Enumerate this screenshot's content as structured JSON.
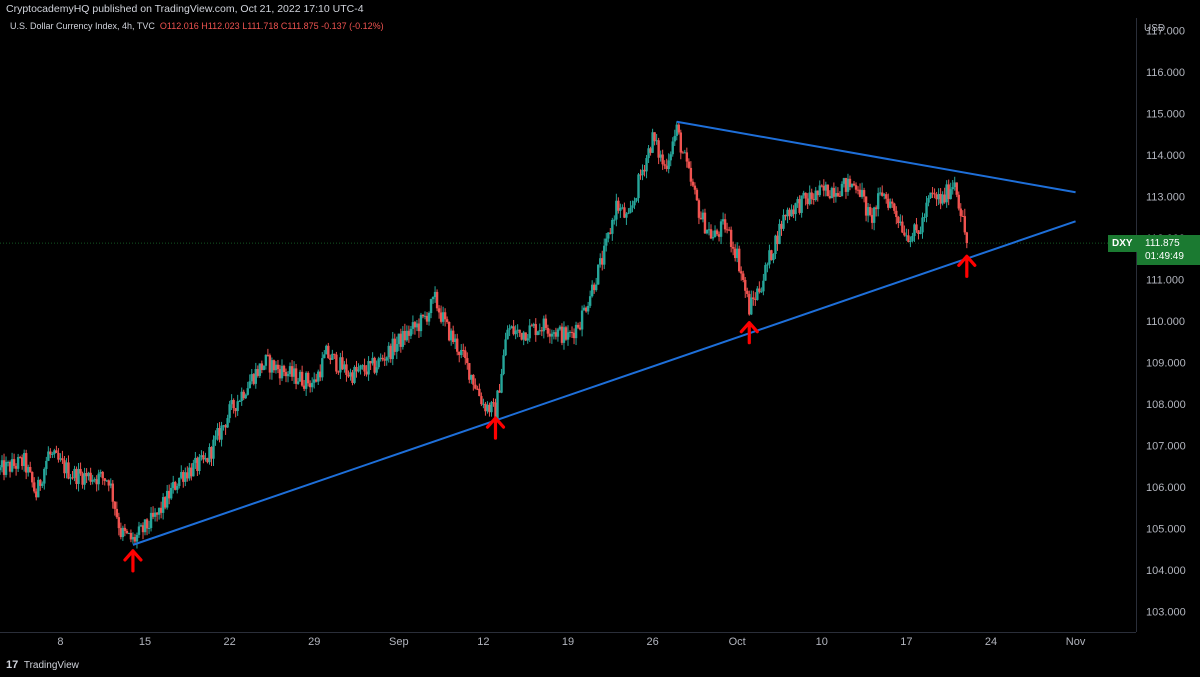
{
  "header": {
    "published_text": "CryptocademyHQ published on TradingView.com, Oct 21, 2022 17:10 UTC-4"
  },
  "legend": {
    "symbol_text": "U.S. Dollar Currency Index, 4h, TVC",
    "open": "O112.016",
    "high": "H112.023",
    "low": "L111.718",
    "close": "C111.875",
    "change": "-0.137 (-0.12%)"
  },
  "price_scale": {
    "currency": "USD",
    "labels": [
      "117.000",
      "116.000",
      "115.000",
      "114.000",
      "113.000",
      "112.000",
      "111.000",
      "110.000",
      "109.000",
      "108.000",
      "107.000",
      "106.000",
      "105.000",
      "104.000",
      "103.000"
    ]
  },
  "last_price": {
    "ticker": "DXY",
    "price": "111.875",
    "countdown": "01:49:49"
  },
  "time_scale": {
    "labels": [
      "8",
      "15",
      "22",
      "29",
      "Sep",
      "12",
      "19",
      "26",
      "Oct",
      "10",
      "17",
      "24",
      "Nov"
    ]
  },
  "footer": {
    "logo_text": "17",
    "brand": "TradingView"
  },
  "colors": {
    "up": "#26a69a",
    "down": "#ef5350",
    "trendline": "#2962ff",
    "arrow": "#ff0000",
    "last_price_bg": "#1b7a31",
    "background": "#000000"
  },
  "chart_data": {
    "type": "candlestick",
    "title": "U.S. Dollar Currency Index, 4h, TVC",
    "ylabel": "USD",
    "ylim": [
      102.5,
      117.3
    ],
    "xrange": [
      "2022-08-03",
      "2022-11-05"
    ],
    "x_ticks": [
      {
        "date": "2022-08-08",
        "label": "8"
      },
      {
        "date": "2022-08-15",
        "label": "15"
      },
      {
        "date": "2022-08-22",
        "label": "22"
      },
      {
        "date": "2022-08-29",
        "label": "29"
      },
      {
        "date": "2022-09-05",
        "label": "Sep"
      },
      {
        "date": "2022-09-12",
        "label": "12"
      },
      {
        "date": "2022-09-19",
        "label": "19"
      },
      {
        "date": "2022-09-26",
        "label": "26"
      },
      {
        "date": "2022-10-03",
        "label": "Oct"
      },
      {
        "date": "2022-10-10",
        "label": "10"
      },
      {
        "date": "2022-10-17",
        "label": "17"
      },
      {
        "date": "2022-10-24",
        "label": "24"
      },
      {
        "date": "2022-10-31",
        "label": "Nov"
      }
    ],
    "closes": [
      {
        "date": "2022-08-03",
        "close": 106.4
      },
      {
        "date": "2022-08-05",
        "close": 106.6
      },
      {
        "date": "2022-08-06",
        "close": 105.8
      },
      {
        "date": "2022-08-07",
        "close": 106.8
      },
      {
        "date": "2022-08-09",
        "close": 106.3
      },
      {
        "date": "2022-08-12",
        "close": 106.2
      },
      {
        "date": "2022-08-13",
        "close": 104.9
      },
      {
        "date": "2022-08-14",
        "close": 104.7
      },
      {
        "date": "2022-08-16",
        "close": 105.3
      },
      {
        "date": "2022-08-18",
        "close": 106.3
      },
      {
        "date": "2022-08-20",
        "close": 106.6
      },
      {
        "date": "2022-08-22",
        "close": 107.8
      },
      {
        "date": "2022-08-24",
        "close": 108.7
      },
      {
        "date": "2022-08-25",
        "close": 109.0
      },
      {
        "date": "2022-08-27",
        "close": 108.7
      },
      {
        "date": "2022-08-29",
        "close": 108.5
      },
      {
        "date": "2022-08-30",
        "close": 109.2
      },
      {
        "date": "2022-09-01",
        "close": 108.7
      },
      {
        "date": "2022-09-03",
        "close": 108.9
      },
      {
        "date": "2022-09-05",
        "close": 109.5
      },
      {
        "date": "2022-09-07",
        "close": 110.0
      },
      {
        "date": "2022-09-08",
        "close": 110.5
      },
      {
        "date": "2022-09-09",
        "close": 109.8
      },
      {
        "date": "2022-09-10",
        "close": 109.3
      },
      {
        "date": "2022-09-11",
        "close": 108.7
      },
      {
        "date": "2022-09-12",
        "close": 108.0
      },
      {
        "date": "2022-09-13",
        "close": 107.8
      },
      {
        "date": "2022-09-14",
        "close": 109.8
      },
      {
        "date": "2022-09-15",
        "close": 109.7
      },
      {
        "date": "2022-09-17",
        "close": 109.9
      },
      {
        "date": "2022-09-19",
        "close": 109.6
      },
      {
        "date": "2022-09-20",
        "close": 110.0
      },
      {
        "date": "2022-09-21",
        "close": 110.8
      },
      {
        "date": "2022-09-22",
        "close": 111.6
      },
      {
        "date": "2022-09-23",
        "close": 112.8
      },
      {
        "date": "2022-09-24",
        "close": 112.4
      },
      {
        "date": "2022-09-25",
        "close": 113.5
      },
      {
        "date": "2022-09-26",
        "close": 114.4
      },
      {
        "date": "2022-09-27",
        "close": 113.7
      },
      {
        "date": "2022-09-28",
        "close": 114.6
      },
      {
        "date": "2022-09-29",
        "close": 113.5
      },
      {
        "date": "2022-09-30",
        "close": 112.5
      },
      {
        "date": "2022-10-01",
        "close": 112.0
      },
      {
        "date": "2022-10-02",
        "close": 112.3
      },
      {
        "date": "2022-10-03",
        "close": 111.6
      },
      {
        "date": "2022-10-04",
        "close": 110.3
      },
      {
        "date": "2022-10-05",
        "close": 110.9
      },
      {
        "date": "2022-10-06",
        "close": 111.8
      },
      {
        "date": "2022-10-07",
        "close": 112.6
      },
      {
        "date": "2022-10-08",
        "close": 112.8
      },
      {
        "date": "2022-10-10",
        "close": 113.1
      },
      {
        "date": "2022-10-11",
        "close": 113.2
      },
      {
        "date": "2022-10-13",
        "close": 113.3
      },
      {
        "date": "2022-10-14",
        "close": 112.4
      },
      {
        "date": "2022-10-15",
        "close": 113.1
      },
      {
        "date": "2022-10-16",
        "close": 112.7
      },
      {
        "date": "2022-10-17",
        "close": 112.1
      },
      {
        "date": "2022-10-18",
        "close": 112.1
      },
      {
        "date": "2022-10-19",
        "close": 113.0
      },
      {
        "date": "2022-10-20",
        "close": 112.9
      },
      {
        "date": "2022-10-21",
        "close": 113.4
      },
      {
        "date": "2022-10-22",
        "close": 111.875
      }
    ],
    "trendlines": [
      {
        "name": "support",
        "start": {
          "date": "2022-08-14",
          "price": 104.6
        },
        "end": {
          "date": "2022-10-31",
          "price": 112.4
        }
      },
      {
        "name": "resistance",
        "start": {
          "date": "2022-09-28",
          "price": 114.8
        },
        "end": {
          "date": "2022-10-31",
          "price": 113.1
        }
      }
    ],
    "arrows": [
      {
        "date": "2022-08-14",
        "price": 104.6
      },
      {
        "date": "2022-09-13",
        "price": 107.8
      },
      {
        "date": "2022-10-04",
        "price": 110.1
      },
      {
        "date": "2022-10-22",
        "price": 111.7
      }
    ],
    "last_price": 111.875
  }
}
